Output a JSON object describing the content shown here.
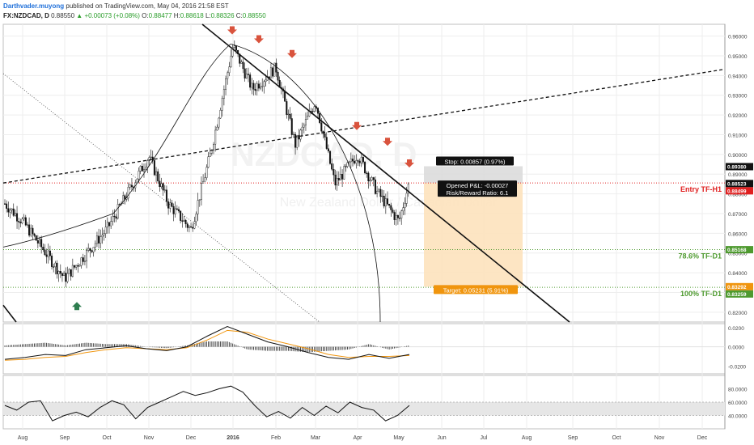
{
  "header": {
    "author": "Darthvader.muyong",
    "published": "published on TradingView.com, May 04, 2016 21:58 EST",
    "symbol": "FX:NZDCAD, D",
    "last": "0.88550",
    "change_arrow": "▲",
    "change": "+0.00073 (+0.08%)",
    "o_label": "O:",
    "o": "0.88477",
    "h_label": "H:",
    "h": "0.88618",
    "l_label": "L:",
    "l": "0.88326",
    "c_label": "C:",
    "c": "0.88550"
  },
  "chart_data": [
    {
      "type": "candlestick",
      "x_labels": [
        "Aug",
        "Sep",
        "Oct",
        "Nov",
        "Dec",
        "2016",
        "Feb",
        "Mar",
        "Apr",
        "May",
        "Jun",
        "Jul",
        "Aug",
        "Sep",
        "Oct",
        "Nov",
        "Dec"
      ],
      "ylim": [
        0.815,
        0.966
      ],
      "y_ticks": [
        "0.96000",
        "0.95000",
        "0.94000",
        "0.93000",
        "0.92000",
        "0.91000",
        "0.90000",
        "0.89000",
        "0.88000",
        "0.87000",
        "0.86000",
        "0.85000",
        "0.84000",
        "0.83000",
        "0.82000"
      ],
      "key_points": [
        {
          "month": "Jul",
          "close": 0.875
        },
        {
          "month": "Aug",
          "close": 0.866
        },
        {
          "month": "Sep",
          "close": 0.837
        },
        {
          "month": "Oct",
          "close": 0.862
        },
        {
          "month": "Nov",
          "close": 0.899
        },
        {
          "month": "Nov",
          "close": 0.875
        },
        {
          "month": "Dec",
          "close": 0.862
        },
        {
          "month": "Dec",
          "close": 0.9
        },
        {
          "month": "2016",
          "close": 0.955
        },
        {
          "month": "2016",
          "close": 0.933
        },
        {
          "month": "Feb",
          "close": 0.944
        },
        {
          "month": "Feb",
          "close": 0.905
        },
        {
          "month": "Mar",
          "close": 0.927
        },
        {
          "month": "Mar",
          "close": 0.885
        },
        {
          "month": "Apr",
          "close": 0.9
        },
        {
          "month": "Apr",
          "close": 0.881
        },
        {
          "month": "May",
          "close": 0.866
        },
        {
          "month": "May",
          "close": 0.886
        }
      ],
      "price_labels": [
        {
          "value": "0.89380",
          "color": "#111111"
        },
        {
          "value": "0.88523",
          "color": "#111111"
        },
        {
          "value": "0.88499",
          "color": "#e02020"
        },
        {
          "value": "0.85168",
          "color": "#4e9a2f"
        },
        {
          "value": "0.83292",
          "color": "#f0950e"
        },
        {
          "value": "0.83259",
          "color": "#4e9a2f"
        }
      ],
      "levels": [
        {
          "name": "Entry TF-H1",
          "value": 0.8855,
          "color": "#e02020"
        },
        {
          "name": "78.6% TF-D1",
          "value": 0.8517,
          "color": "#4e9a2f"
        },
        {
          "name": "100% TF-D1",
          "value": 0.8326,
          "color": "#4e9a2f"
        }
      ],
      "position": {
        "stop_text": "Stop: 0.00857 (0.97%)",
        "pl_text": "Opened P&L: -0.00027",
        "rr_text": "Risk/Reward Ratio: 6.1",
        "target_text": "Target: 0.05231 (5.91%)",
        "entry": 0.8855,
        "stop": 0.894,
        "target": 0.8329
      },
      "watermark": "NZDCAD, D",
      "watermark_sub": "New Zealand Dollar / Canadian Dollar",
      "colors": {
        "up": "#ffffff",
        "down": "#111111",
        "stop_zone": "#d9d9d9",
        "target_zone": "#fde2bd",
        "sell_arrow": "#d9533d",
        "buy_arrow": "#2e7d4f"
      }
    },
    {
      "type": "line",
      "name": "MACD",
      "ylim": [
        -0.028,
        0.024
      ],
      "y_ticks": [
        "0.0200",
        "0.0000",
        "-0.0200"
      ],
      "line_values": [
        -0.013,
        -0.011,
        -0.008,
        -0.009,
        -0.003,
        -0.001,
        0.001,
        -0.002,
        -0.004,
        0.0,
        0.011,
        0.021,
        0.013,
        0.005,
        0.0,
        -0.006,
        -0.011,
        -0.013,
        -0.008,
        -0.012,
        -0.008
      ],
      "signal_values": [
        -0.014,
        -0.013,
        -0.011,
        -0.01,
        -0.006,
        -0.003,
        -0.001,
        -0.002,
        -0.003,
        -0.001,
        0.007,
        0.017,
        0.015,
        0.008,
        0.003,
        -0.002,
        -0.008,
        -0.011,
        -0.01,
        -0.01,
        -0.009
      ],
      "colors": {
        "macd": "#111111",
        "signal": "#f0950e",
        "hist": "#333333"
      }
    },
    {
      "type": "line",
      "name": "RSI",
      "ylim": [
        20,
        100
      ],
      "y_ticks": [
        "80.0000",
        "60.0000",
        "40.0000"
      ],
      "band": [
        40,
        60
      ],
      "values": [
        55,
        48,
        60,
        62,
        32,
        40,
        45,
        38,
        52,
        62,
        56,
        35,
        52,
        60,
        68,
        76,
        70,
        74,
        80,
        84,
        75,
        55,
        38,
        46,
        36,
        52,
        40,
        54,
        44,
        60,
        52,
        48,
        32,
        40,
        55
      ],
      "colors": {
        "line": "#111111",
        "band": "#e6e6e6"
      }
    }
  ]
}
